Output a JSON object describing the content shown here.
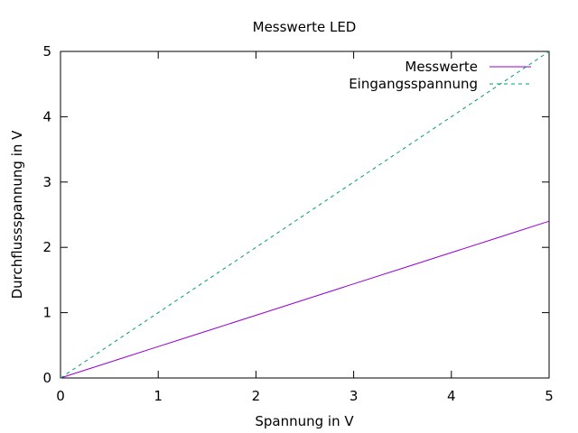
{
  "chart_data": {
    "type": "line",
    "title": "Messwerte LED",
    "xlabel": "Spannung in V",
    "ylabel": "Durchflussspannung in V",
    "xlim": [
      0,
      5
    ],
    "ylim": [
      0,
      5
    ],
    "xticks": [
      "0",
      "1",
      "2",
      "3",
      "4",
      "5"
    ],
    "yticks": [
      "0",
      "1",
      "2",
      "3",
      "4",
      "5"
    ],
    "grid": false,
    "legend_position": "top-right",
    "series": [
      {
        "name": "Messwerte",
        "color": "#9400d3",
        "dash": "solid",
        "x": [
          0,
          0.5,
          1,
          1.5,
          2,
          2.5,
          3,
          3.5,
          4,
          4.5,
          5
        ],
        "y": [
          0,
          0.24,
          0.48,
          0.72,
          0.96,
          1.2,
          1.44,
          1.68,
          1.92,
          2.16,
          2.4
        ]
      },
      {
        "name": "Eingangsspannung",
        "color": "#009e73",
        "dash": "dashed",
        "x": [
          0,
          5
        ],
        "y": [
          0,
          5
        ]
      }
    ]
  }
}
